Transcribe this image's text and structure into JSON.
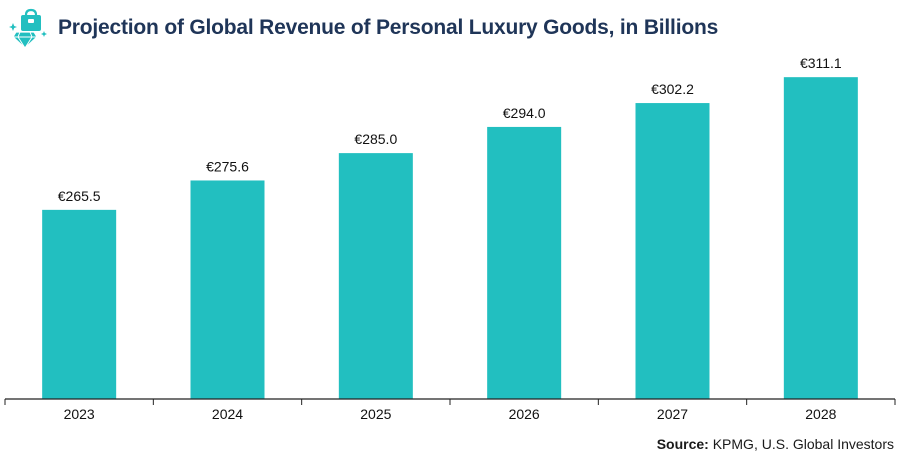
{
  "chart_data": {
    "type": "bar",
    "title": "Projection of Global Revenue of Personal Luxury Goods, in Billions",
    "categories": [
      "2023",
      "2024",
      "2025",
      "2026",
      "2027",
      "2028"
    ],
    "values": [
      265.5,
      275.6,
      285.0,
      294.0,
      302.2,
      311.1
    ],
    "value_labels": [
      "€265.5",
      "€275.6",
      "€285.0",
      "€294.0",
      "€302.2",
      "€311.1"
    ],
    "xlabel": "",
    "ylabel": "",
    "ylim": [
      200.5,
      317
    ],
    "grid": false,
    "legend": "none",
    "bar_color": "#22bfc0"
  },
  "source": {
    "label": "Source:",
    "text": " KPMG, U.S. Global Investors"
  },
  "logo": {
    "icon": "luxury-shopping-bag-diamond-icon",
    "color": "#22bfc0"
  }
}
